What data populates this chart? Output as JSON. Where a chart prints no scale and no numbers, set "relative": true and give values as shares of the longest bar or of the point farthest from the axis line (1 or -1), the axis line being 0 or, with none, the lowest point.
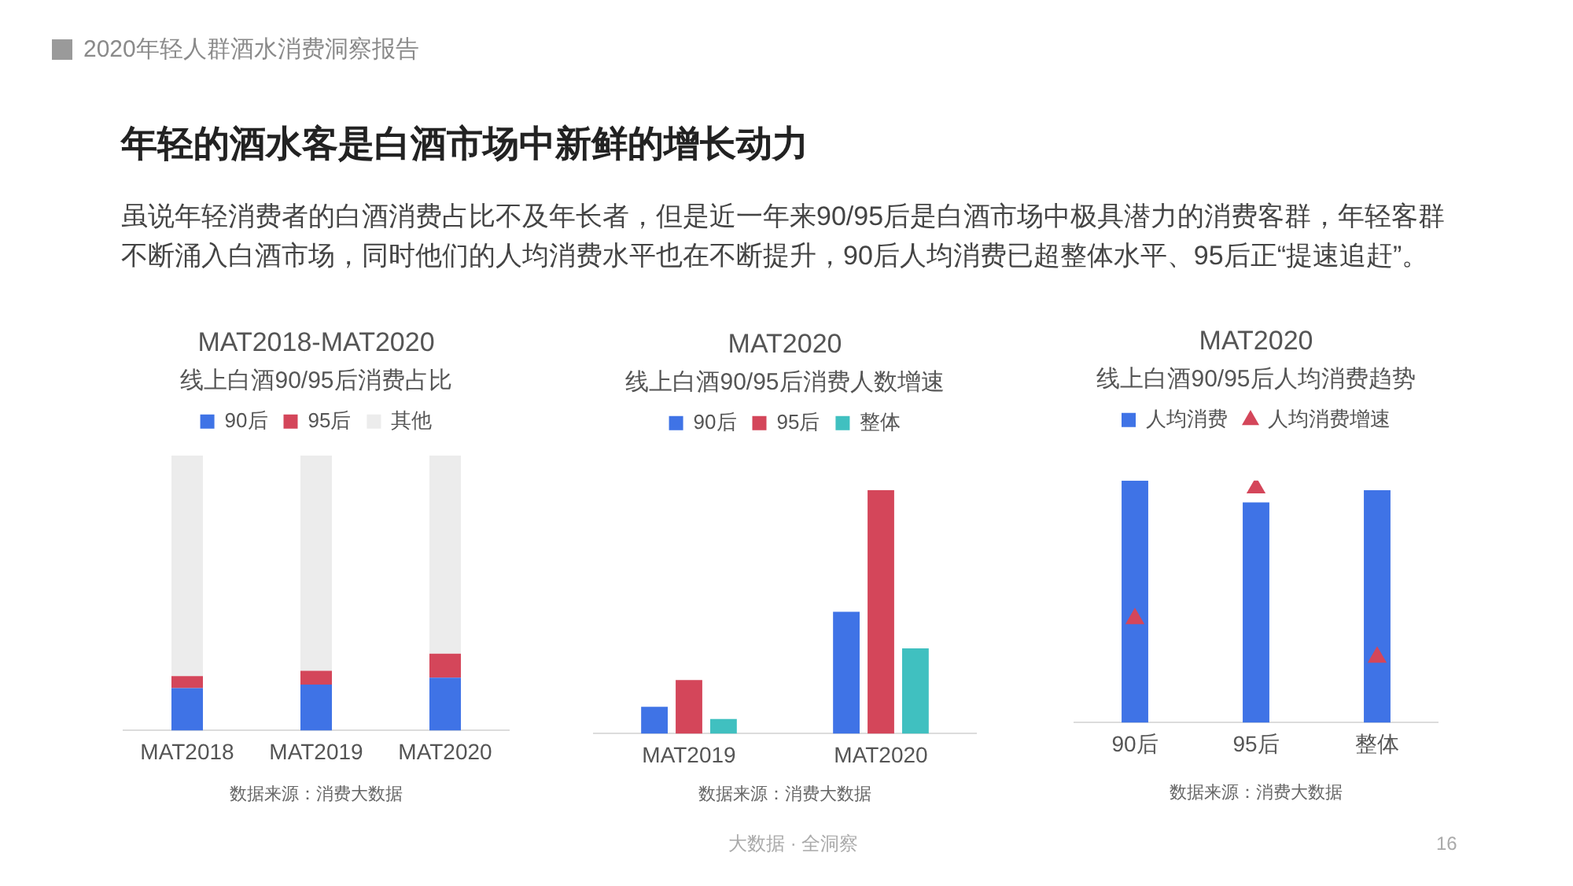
{
  "chart_data": [
    {
      "type": "other",
      "title": "年轻的酒水客是白酒市场中新鲜的增长动力",
      "subtitle": "虽说年轻消费者的白酒消费占比不及年长者，但是近一年来90/95后是白酒市场中极具潜力的消费客群，年轻客群不断涌入白酒市场，同时他们的人均消费水平也在不断提升，90后人均消费已超整体水平、95后正“提速追赶”。",
      "annotations": [
        "2020年轻人群酒水消费洞察报告",
        "大数据 · 全洞察",
        "16"
      ]
    },
    {
      "type": "bar",
      "title": "MAT2018-MAT2020",
      "subtitle": "线上白酒90/95后消费占比",
      "categories": [
        "MAT2018",
        "MAT2019",
        "MAT2020"
      ],
      "series": [
        {
          "name": "90后",
          "color": "#3f73e6",
          "values": [
            0.154,
            0.167,
            0.192
          ]
        },
        {
          "name": "95后",
          "color": "#d4465a",
          "values": [
            0.044,
            0.05,
            0.087
          ]
        },
        {
          "name": "其他",
          "color": "#ececec",
          "values": [
            0.802,
            0.783,
            0.721
          ]
        }
      ],
      "stacked": true,
      "relative": true,
      "legend": "top",
      "annotations": [
        "数据来源：消费大数据"
      ]
    },
    {
      "type": "bar",
      "title": "MAT2020",
      "subtitle": "线上白酒90/95后消费人数增速",
      "categories": [
        "MAT2019",
        "MAT2020"
      ],
      "series": [
        {
          "name": "90后",
          "color": "#3f73e6",
          "values": [
            0.11,
            0.5
          ]
        },
        {
          "name": "95后",
          "color": "#d4465a",
          "values": [
            0.22,
            1
          ]
        },
        {
          "name": "整体",
          "color": "#40c0c0",
          "values": [
            0.06,
            0.35
          ]
        }
      ],
      "relative": true,
      "legend": "top",
      "annotations": [
        "数据来源：消费大数据"
      ]
    },
    {
      "type": "bar",
      "title": "MAT2020",
      "subtitle": "线上白酒90/95后人均消费趋势",
      "categories": [
        "90后",
        "95后",
        "整体"
      ],
      "series": [
        {
          "name": "人均消费",
          "color": "#3f73e6",
          "values": [
            1,
            0.91,
            0.96
          ]
        },
        {
          "name": "人均消费增速",
          "type": "scatter",
          "marker": "triangle",
          "color": "#d4465a",
          "x": [
            "90后",
            "95后",
            "整体"
          ],
          "values": [
            0.43,
            0.97,
            0.27
          ]
        }
      ],
      "relative": true,
      "legend": "top",
      "annotations": [
        "数据来源：消费大数据"
      ]
    }
  ]
}
